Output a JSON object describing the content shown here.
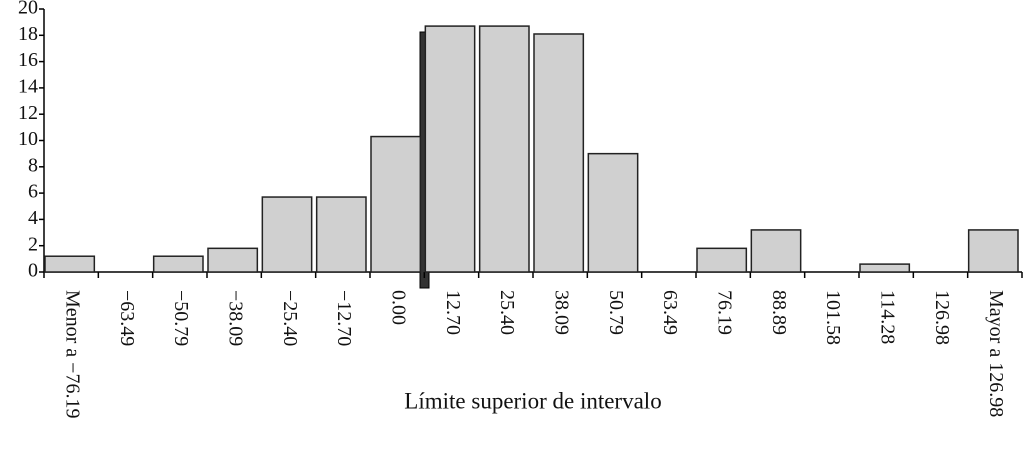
{
  "chart_data": {
    "type": "bar",
    "x_label": "Límite superior de intervalo",
    "categories": [
      "Menor a −76.19",
      "−63.49",
      "−50.79",
      "−38.09",
      "−25.40",
      "−12.70",
      "0.00",
      "12.70",
      "25.40",
      "38.09",
      "50.79",
      "63.49",
      "76.19",
      "88.89",
      "101.58",
      "114.28",
      "126.98",
      "Mayor a 126.98"
    ],
    "values": [
      1.2,
      0,
      1.2,
      1.8,
      5.7,
      5.7,
      10.3,
      18.7,
      18.7,
      18.1,
      9,
      0,
      1.8,
      3.2,
      0,
      0.6,
      0,
      3.2
    ],
    "color": "#d0d0d0",
    "ylim": [
      0,
      20
    ],
    "yticks": [
      0,
      2,
      4,
      6,
      8,
      10,
      12,
      14,
      16,
      18,
      20
    ],
    "grid": false
  }
}
